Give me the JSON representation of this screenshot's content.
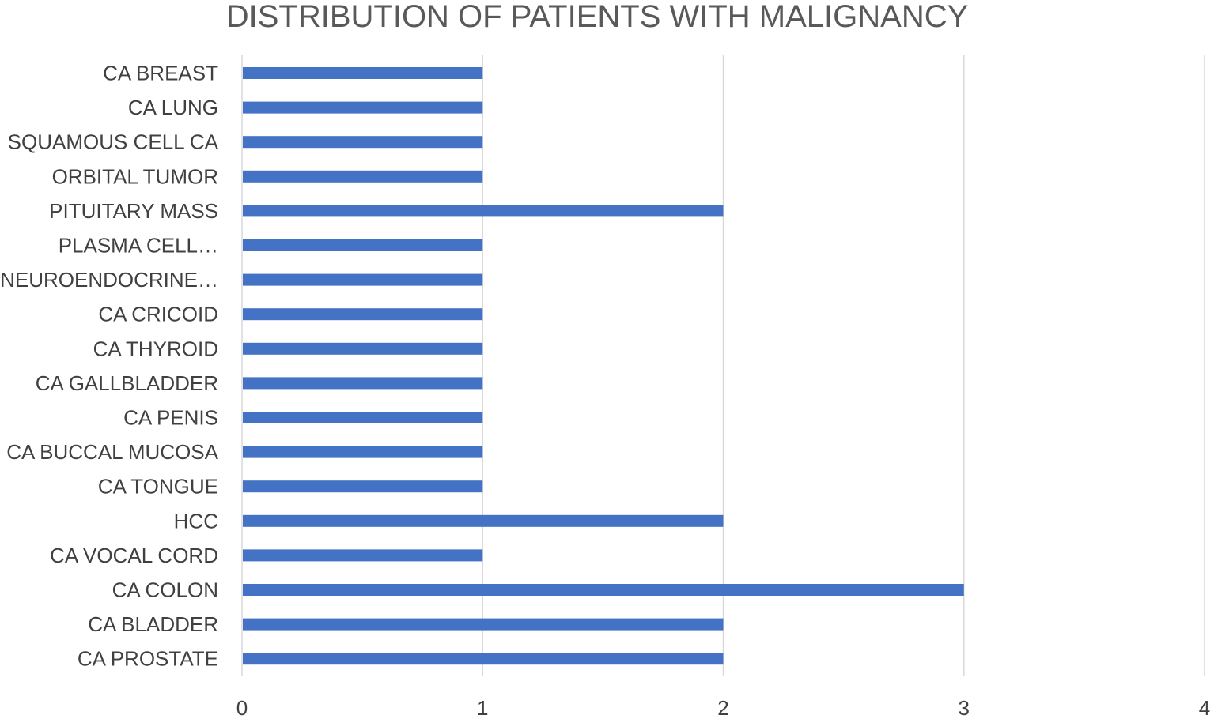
{
  "chart_data": {
    "type": "bar",
    "orientation": "horizontal",
    "title": "DISTRIBUTION OF PATIENTS WITH MALIGNANCY",
    "xlabel": "",
    "ylabel": "",
    "categories": [
      "CA BREAST",
      "CA LUNG",
      "SQUAMOUS CELL CA",
      "ORBITAL TUMOR",
      "PITUITARY MASS",
      "PLASMA CELL…",
      "NEUROENDOCRINE…",
      "CA CRICOID",
      "CA THYROID",
      "CA GALLBLADDER",
      "CA PENIS",
      "CA BUCCAL MUCOSA",
      "CA TONGUE",
      "HCC",
      "CA VOCAL CORD",
      "CA COLON",
      "CA BLADDER",
      "CA PROSTATE"
    ],
    "values": [
      1,
      1,
      1,
      1,
      2,
      1,
      1,
      1,
      1,
      1,
      1,
      1,
      1,
      2,
      1,
      3,
      2,
      2
    ],
    "xlim": [
      0,
      4
    ],
    "xticks": [
      "0",
      "1",
      "2",
      "3",
      "4"
    ],
    "grid": "vertical",
    "legend": "none",
    "bar_color": "#4472c4"
  }
}
